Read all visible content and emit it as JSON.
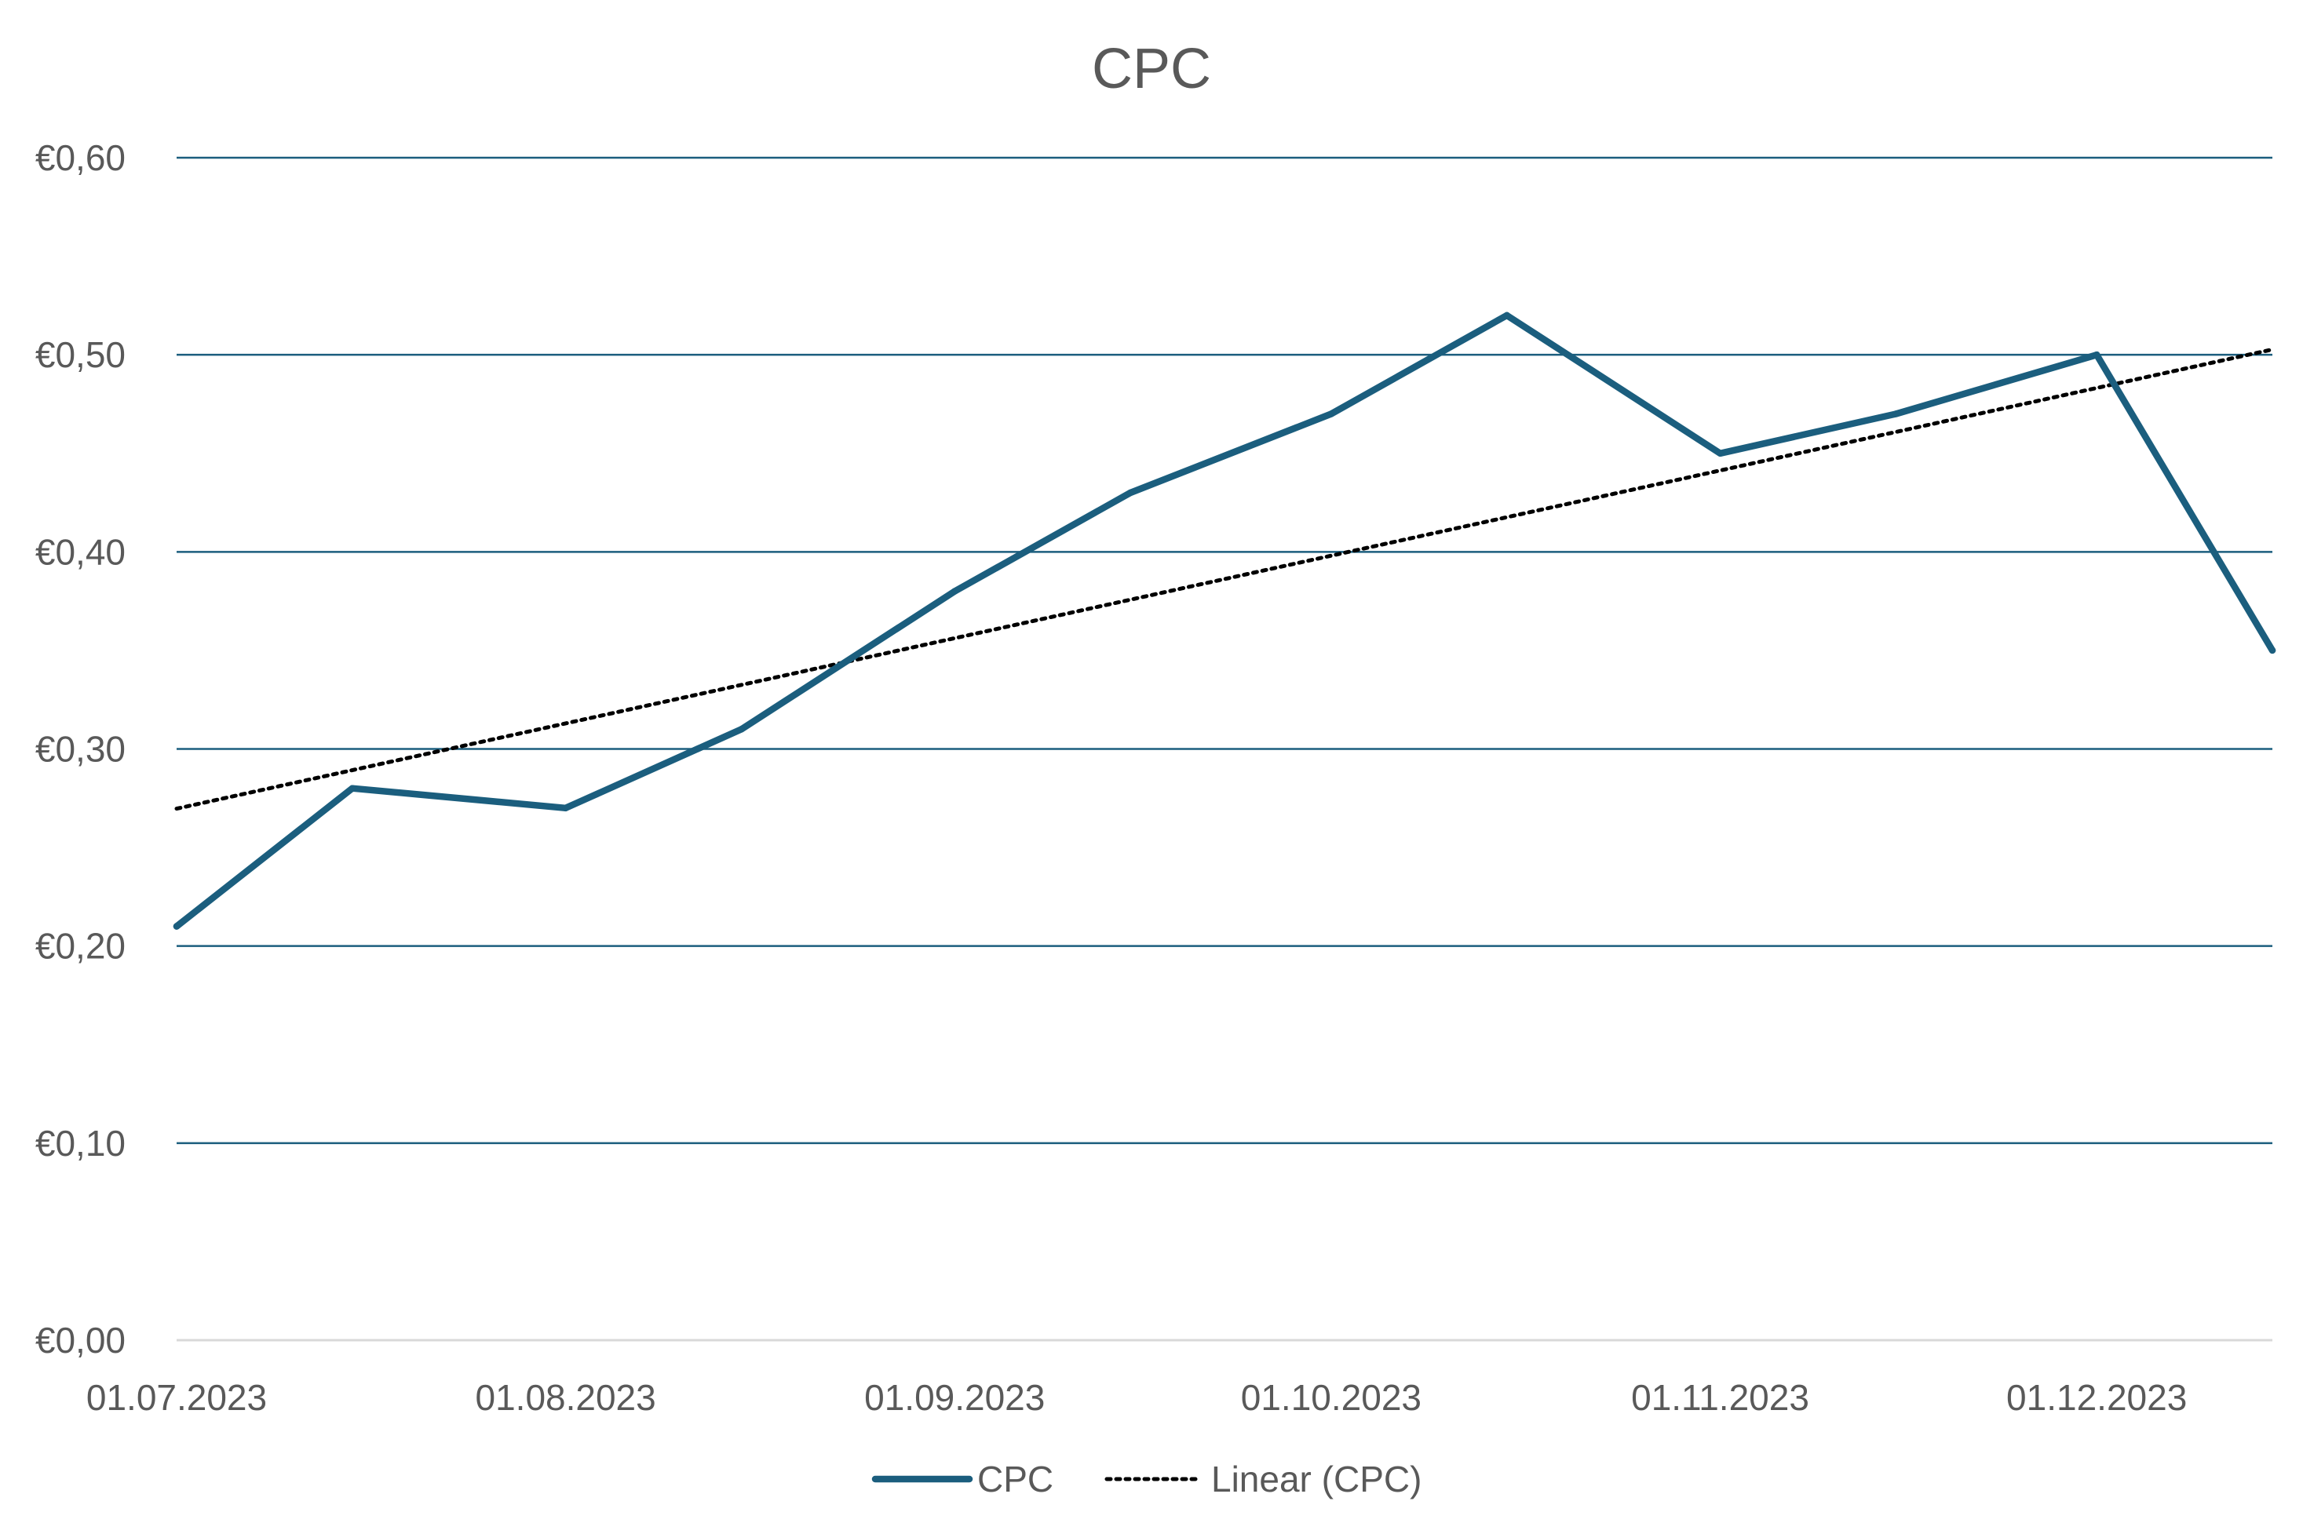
{
  "chart_data": {
    "type": "line",
    "title": "CPC",
    "xlabel": "",
    "ylabel": "",
    "x": [
      "2023-07-01",
      "2023-07-15",
      "2023-08-01",
      "2023-08-15",
      "2023-09-01",
      "2023-09-15",
      "2023-10-01",
      "2023-10-15",
      "2023-11-01",
      "2023-11-15",
      "2023-12-01",
      "2023-12-15"
    ],
    "x_tick_labels": [
      {
        "date": "2023-07-01",
        "label": "01.07.2023"
      },
      {
        "date": "2023-08-01",
        "label": "01.08.2023"
      },
      {
        "date": "2023-09-01",
        "label": "01.09.2023"
      },
      {
        "date": "2023-10-01",
        "label": "01.10.2023"
      },
      {
        "date": "2023-11-01",
        "label": "01.11.2023"
      },
      {
        "date": "2023-12-01",
        "label": "01.12.2023"
      }
    ],
    "ylim": [
      0,
      0.6
    ],
    "y_ticks": [
      0,
      0.1,
      0.2,
      0.3,
      0.4,
      0.5,
      0.6
    ],
    "y_tick_labels": [
      "€0,00",
      "€0,10",
      "€0,20",
      "€0,30",
      "€0,40",
      "€0,50",
      "€0,60"
    ],
    "grid": true,
    "legend": "bottom",
    "series": [
      {
        "name": "CPC",
        "color": "#1b5e7e",
        "values": [
          0.21,
          0.28,
          0.27,
          0.31,
          0.38,
          0.43,
          0.47,
          0.52,
          0.45,
          0.47,
          0.5,
          0.35
        ]
      }
    ],
    "trendline": {
      "name": "Linear (CPC)",
      "type": "linear",
      "color": "#000000",
      "of_series": "CPC"
    },
    "colors": {
      "gridline": "#1b5e7e",
      "baseline": "#d9d9d9",
      "text": "#595959"
    }
  }
}
